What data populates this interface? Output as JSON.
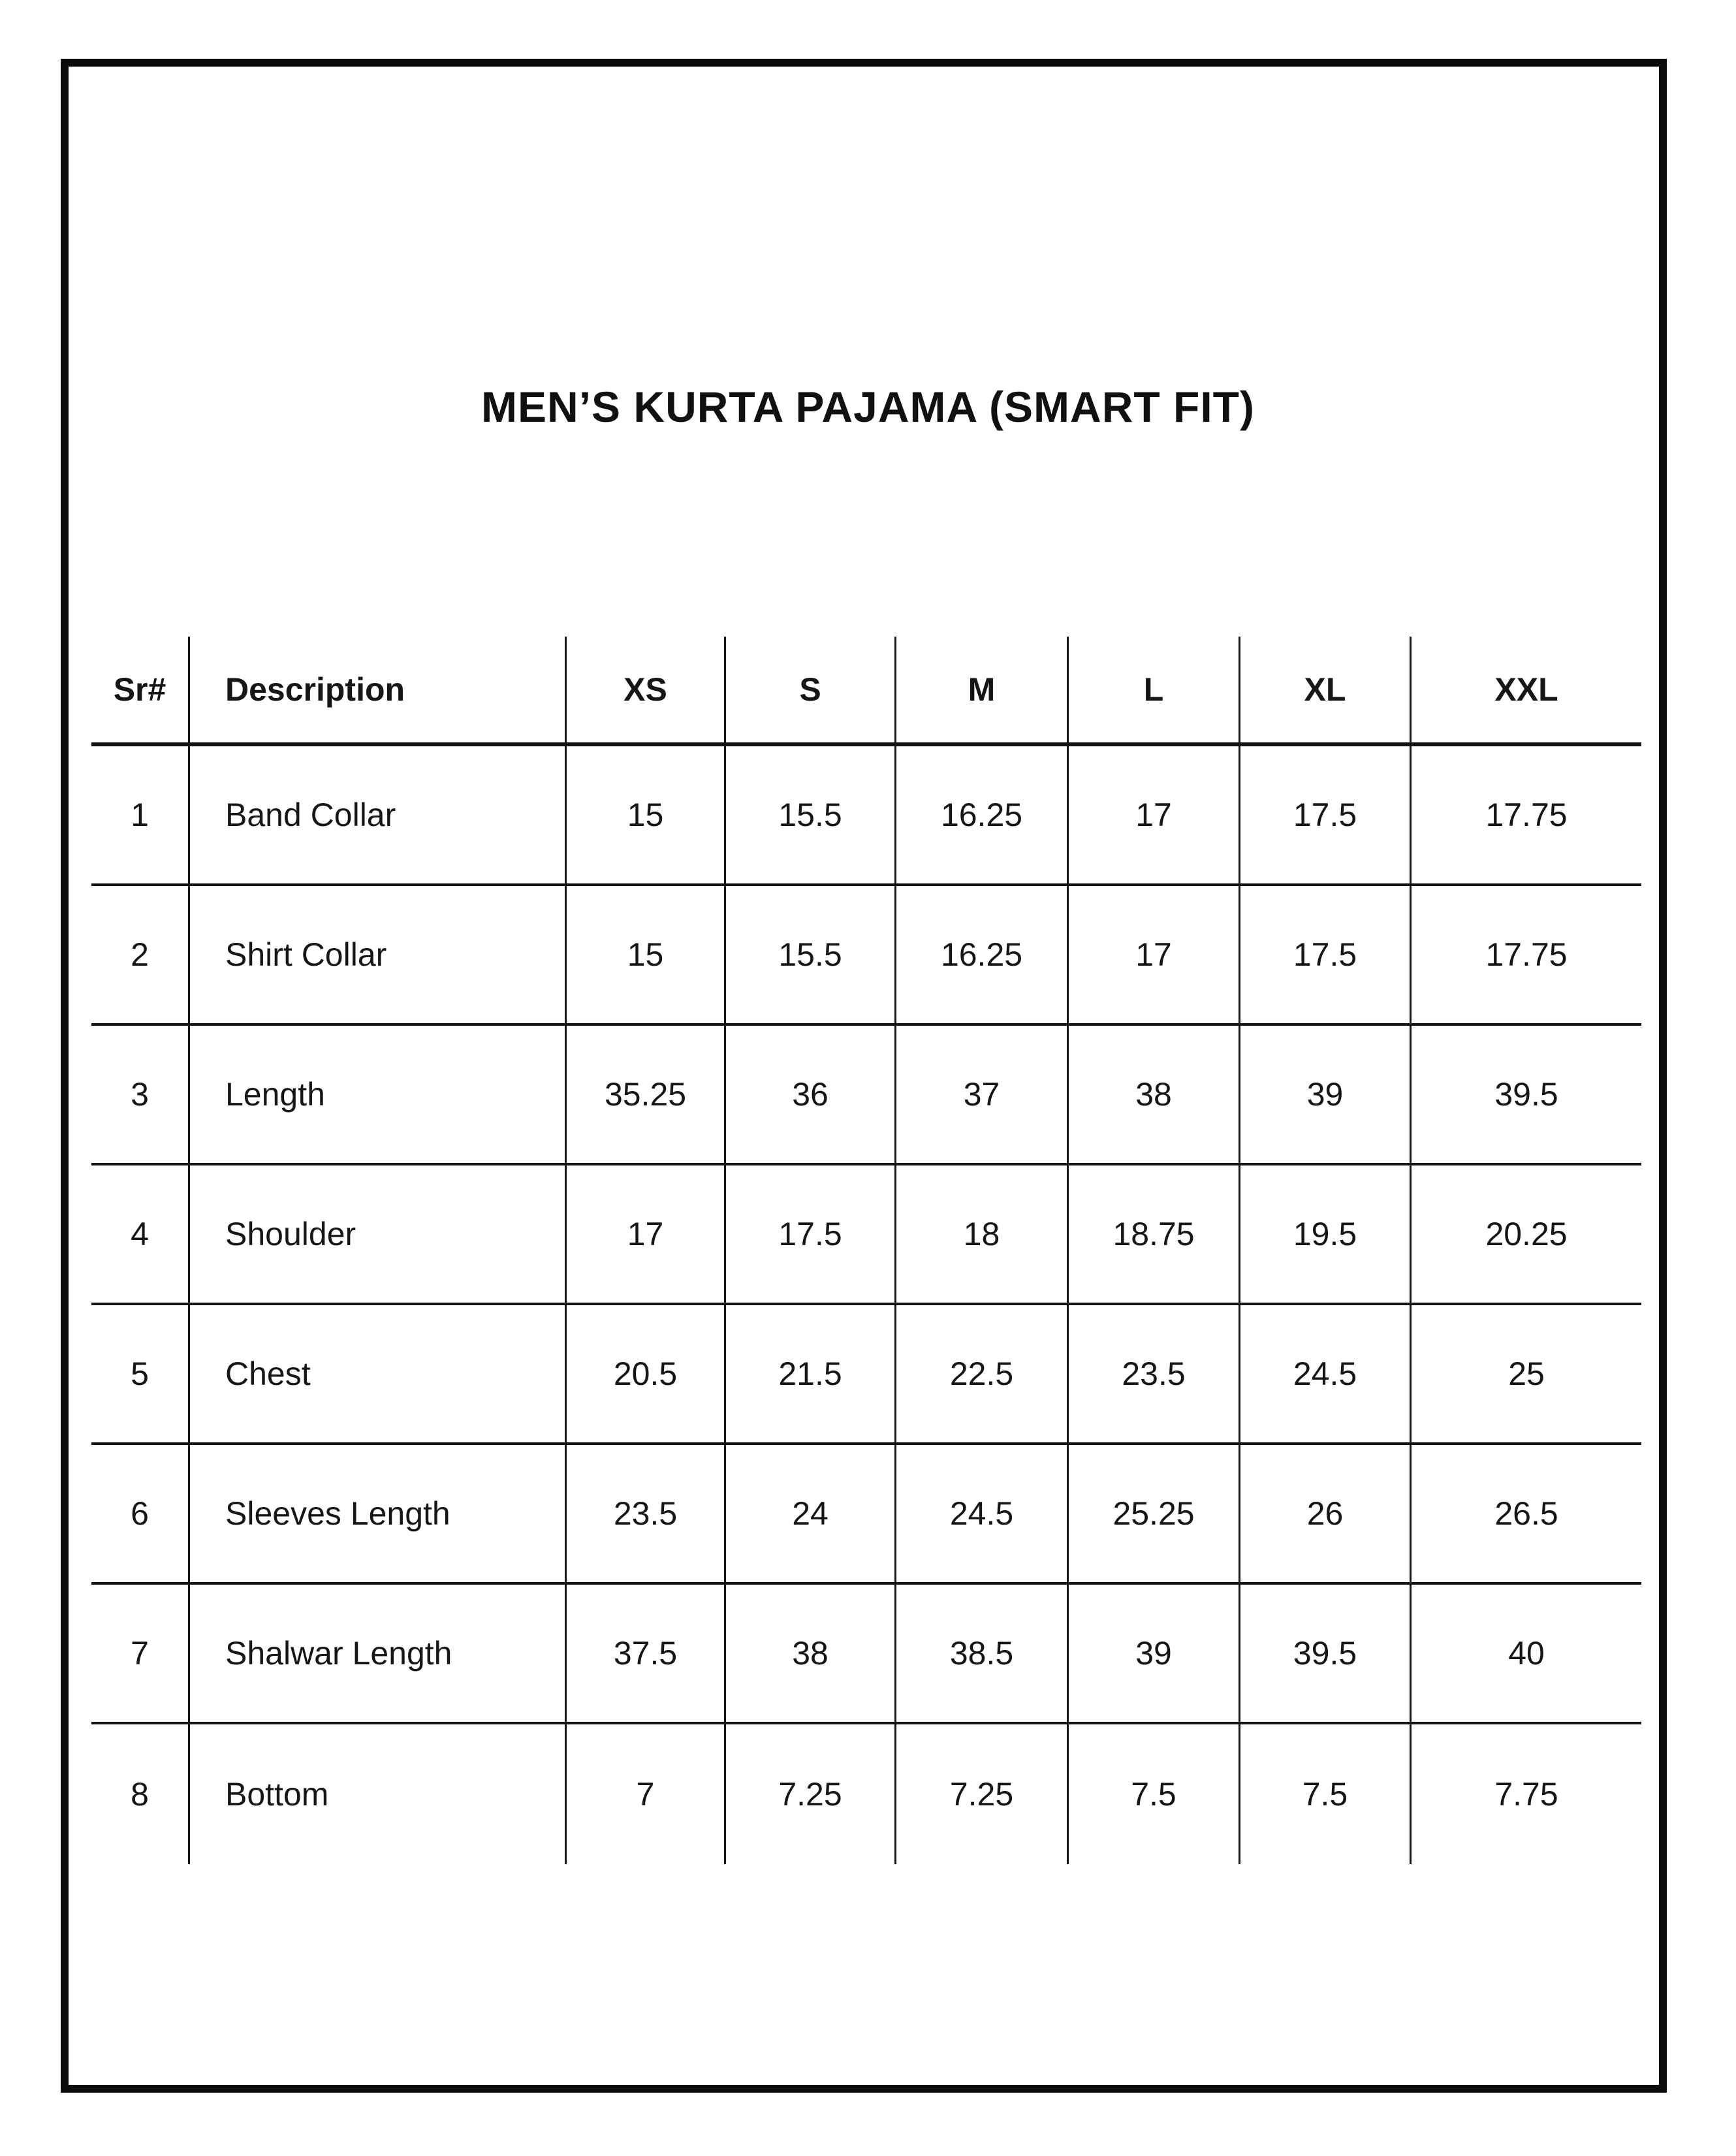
{
  "document": {
    "title": "MEN’S KURTA PAJAMA (SMART FIT)"
  },
  "size_chart": {
    "columns": [
      "Sr#",
      "Description",
      "XS",
      "S",
      "M",
      "L",
      "XL",
      "XXL"
    ],
    "rows": [
      {
        "sr": "1",
        "description": "Band Collar",
        "values": [
          "15",
          "15.5",
          "16.25",
          "17",
          "17.5",
          "17.75"
        ]
      },
      {
        "sr": "2",
        "description": "Shirt Collar",
        "values": [
          "15",
          "15.5",
          "16.25",
          "17",
          "17.5",
          "17.75"
        ]
      },
      {
        "sr": "3",
        "description": "Length",
        "values": [
          "35.25",
          "36",
          "37",
          "38",
          "39",
          "39.5"
        ]
      },
      {
        "sr": "4",
        "description": "Shoulder",
        "values": [
          "17",
          "17.5",
          "18",
          "18.75",
          "19.5",
          "20.25"
        ]
      },
      {
        "sr": "5",
        "description": "Chest",
        "values": [
          "20.5",
          "21.5",
          "22.5",
          "23.5",
          "24.5",
          "25"
        ]
      },
      {
        "sr": "6",
        "description": "Sleeves Length",
        "values": [
          "23.5",
          "24",
          "24.5",
          "25.25",
          "26",
          "26.5"
        ]
      },
      {
        "sr": "7",
        "description": "Shalwar Length",
        "values": [
          "37.5",
          "38",
          "38.5",
          "39",
          "39.5",
          "40"
        ]
      },
      {
        "sr": "8",
        "description": "Bottom",
        "values": [
          "7",
          "7.25",
          "7.25",
          "7.5",
          "7.5",
          "7.75"
        ]
      }
    ]
  },
  "style": {
    "ink": "#161616",
    "frame_color": "#0b0b0b",
    "background": "#ffffff"
  }
}
